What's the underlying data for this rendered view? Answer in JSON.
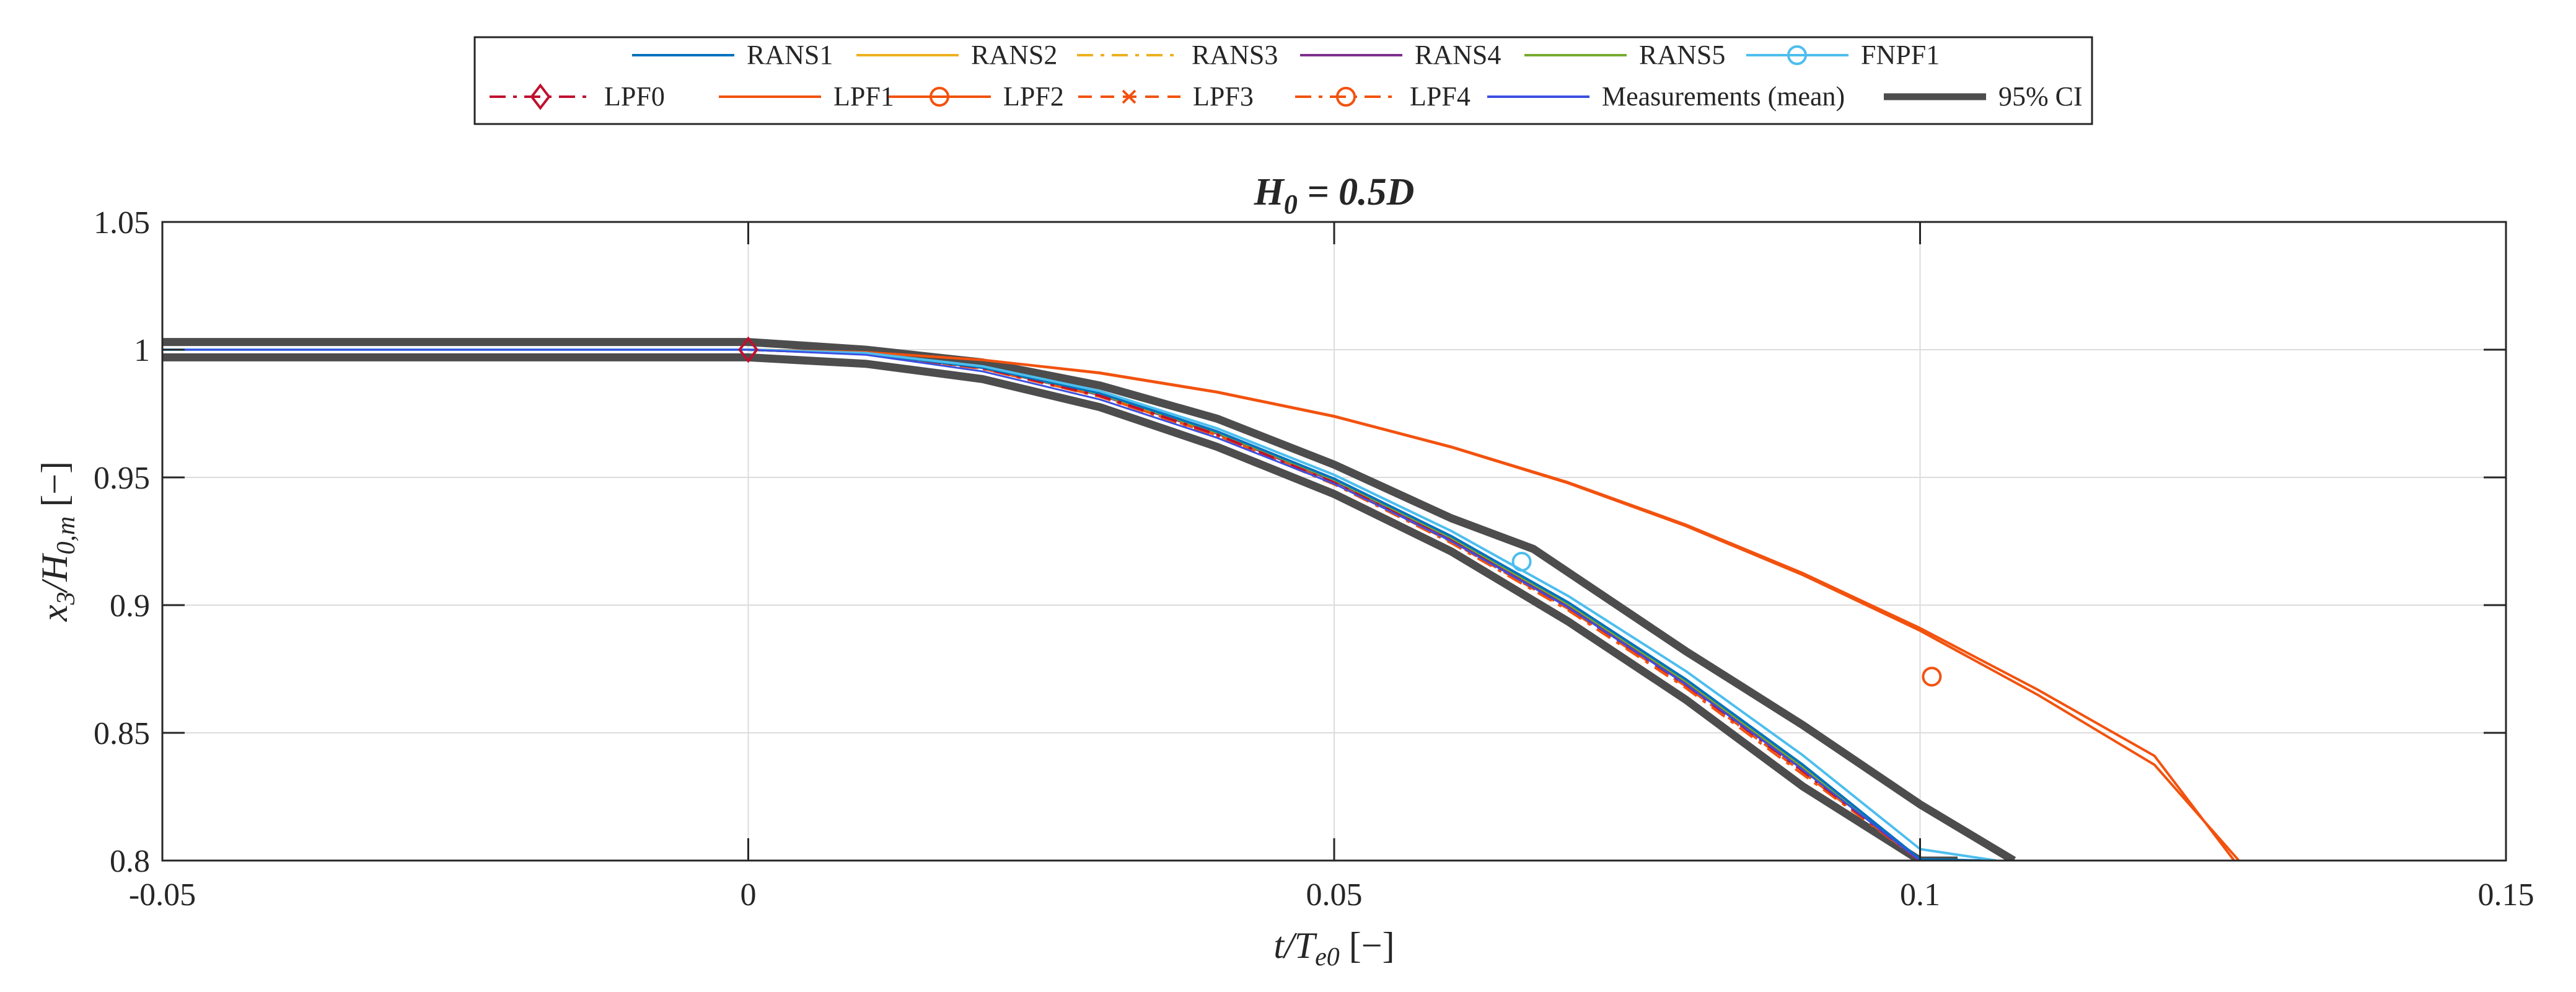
{
  "chart_data": {
    "type": "line",
    "title": "H_0 = 0.5D",
    "title_parts": {
      "lhs": "H",
      "sub": "0",
      "rhs": " = 0.5D"
    },
    "xlabel": "t/T_e0 [−]",
    "xlabel_parts": {
      "main": "t/T",
      "sub": "e0",
      "unit": " [−]"
    },
    "ylabel": "x_3/H_0,m [−]",
    "ylabel_parts": {
      "a": "x",
      "a_sub": "3",
      "b": "/H",
      "b_sub": "0,m",
      "unit": " [−]"
    },
    "xlim": [
      -0.05,
      0.15
    ],
    "ylim": [
      0.8,
      1.05
    ],
    "x_ticks": [
      -0.05,
      0,
      0.05,
      0.1,
      0.15
    ],
    "x_tick_labels": [
      "-0.05",
      "0",
      "0.05",
      "0.1",
      "0.15"
    ],
    "y_ticks": [
      0.8,
      0.85,
      0.9,
      0.95,
      1,
      1.05
    ],
    "y_tick_labels": [
      "0.8",
      "0.85",
      "0.9",
      "0.95",
      "1",
      "1.05"
    ],
    "grid": true,
    "legend_position": "top-center, outside",
    "series": [
      {
        "name": "RANS1",
        "color": "#0072BD",
        "dash": "solid",
        "marker": "none",
        "x": [
          -0.05,
          0,
          0.01,
          0.02,
          0.03,
          0.04,
          0.05,
          0.06,
          0.07,
          0.08,
          0.09,
          0.1,
          0.1055
        ],
        "y": [
          1.0,
          1.0,
          0.9985,
          0.993,
          0.983,
          0.968,
          0.9495,
          0.927,
          0.901,
          0.871,
          0.8375,
          0.8005,
          0.8
        ]
      },
      {
        "name": "RANS2",
        "color": "#EDB120",
        "dash": "solid",
        "marker": "none",
        "x": [
          -0.05,
          0,
          0.01,
          0.02,
          0.03,
          0.04,
          0.05,
          0.06,
          0.07,
          0.08,
          0.09,
          0.1,
          0.105
        ],
        "y": [
          1.0,
          1.0,
          0.9985,
          0.993,
          0.9825,
          0.9675,
          0.949,
          0.9265,
          0.9005,
          0.8705,
          0.837,
          0.8,
          0.8
        ]
      },
      {
        "name": "RANS3",
        "color": "#EDB120",
        "dash": "dashdot",
        "marker": "none",
        "x": [
          -0.05,
          0,
          0.01,
          0.02,
          0.03,
          0.04,
          0.05,
          0.06,
          0.07,
          0.08,
          0.09,
          0.1,
          0.1045
        ],
        "y": [
          1.0,
          1.0,
          0.9985,
          0.9928,
          0.9822,
          0.967,
          0.9482,
          0.9255,
          0.8993,
          0.8692,
          0.8355,
          0.8,
          0.8
        ]
      },
      {
        "name": "RANS4",
        "color": "#7E2F8E",
        "dash": "solid",
        "marker": "none",
        "x": [
          -0.05,
          0,
          0.01,
          0.02,
          0.03,
          0.04,
          0.05,
          0.06,
          0.07,
          0.08,
          0.09,
          0.1,
          0.1048
        ],
        "y": [
          1.0,
          1.0,
          0.9985,
          0.9929,
          0.9823,
          0.9672,
          0.9485,
          0.9258,
          0.8997,
          0.8696,
          0.836,
          0.8,
          0.8
        ]
      },
      {
        "name": "RANS5",
        "color": "#77AC30",
        "dash": "solid",
        "marker": "none",
        "x": [
          -0.05,
          0,
          0.01,
          0.02,
          0.03,
          0.04,
          0.05,
          0.06,
          0.07,
          0.08,
          0.09,
          0.1,
          0.1052
        ],
        "y": [
          1.0,
          1.0,
          0.9985,
          0.993,
          0.9826,
          0.9676,
          0.949,
          0.9264,
          0.9003,
          0.8703,
          0.8367,
          0.8,
          0.8
        ]
      },
      {
        "name": "FNPF1",
        "color": "#4DBEEE",
        "dash": "solid",
        "marker": "circle",
        "marker_x": [
          0.066
        ],
        "marker_y": [
          0.917
        ],
        "x": [
          -0.05,
          0,
          0.01,
          0.02,
          0.03,
          0.04,
          0.05,
          0.06,
          0.07,
          0.08,
          0.09,
          0.1,
          0.1065
        ],
        "y": [
          1.0,
          1.0,
          0.9987,
          0.9935,
          0.9838,
          0.9692,
          0.951,
          0.929,
          0.9035,
          0.8742,
          0.8412,
          0.8045,
          0.8
        ]
      },
      {
        "name": "LPF0",
        "color": "#C0102E",
        "dash": "dashdot",
        "marker": "diamond",
        "marker_x": [
          0.0
        ],
        "marker_y": [
          1.0
        ],
        "x": [
          -0.05,
          0,
          0.01,
          0.02,
          0.03,
          0.04,
          0.05,
          0.06,
          0.07,
          0.08,
          0.09,
          0.1,
          0.1042
        ],
        "y": [
          1.0,
          1.0,
          0.9985,
          0.9928,
          0.982,
          0.9668,
          0.948,
          0.9252,
          0.899,
          0.8688,
          0.835,
          0.8,
          0.8
        ]
      },
      {
        "name": "LPF1",
        "color": "#F2520E",
        "dash": "solid",
        "marker": "none",
        "x": [
          -0.05,
          0,
          0.01,
          0.02,
          0.03,
          0.04,
          0.05,
          0.06,
          0.07,
          0.08,
          0.09,
          0.1,
          0.11,
          0.12,
          0.1268
        ],
        "y": [
          1.0,
          1.0,
          0.999,
          0.996,
          0.991,
          0.9835,
          0.974,
          0.962,
          0.948,
          0.9315,
          0.9125,
          0.891,
          0.867,
          0.841,
          0.8
        ]
      },
      {
        "name": "LPF2",
        "color": "#F2520E",
        "dash": "solid",
        "marker": "circle",
        "marker_x": [
          0.101
        ],
        "marker_y": [
          0.872
        ],
        "x": [
          -0.05,
          0,
          0.01,
          0.02,
          0.03,
          0.04,
          0.05,
          0.06,
          0.07,
          0.08,
          0.09,
          0.1,
          0.11,
          0.12,
          0.1272
        ],
        "y": [
          1.0,
          1.0,
          0.999,
          0.996,
          0.9908,
          0.9833,
          0.9738,
          0.9618,
          0.9477,
          0.931,
          0.9118,
          0.89,
          0.865,
          0.8375,
          0.8
        ]
      },
      {
        "name": "LPF3",
        "color": "#F2520E",
        "dash": "dashed",
        "marker": "x",
        "marker_x": [],
        "marker_y": [],
        "x": [
          -0.05,
          0,
          0.01,
          0.02,
          0.03,
          0.04,
          0.05,
          0.06,
          0.07,
          0.08,
          0.09,
          0.1,
          0.104
        ],
        "y": [
          1.0,
          1.0,
          0.9984,
          0.9926,
          0.9818,
          0.9665,
          0.9477,
          0.9248,
          0.8985,
          0.8683,
          0.8345,
          0.8,
          0.8
        ]
      },
      {
        "name": "LPF4",
        "color": "#F2520E",
        "dash": "dashdot",
        "marker": "circle",
        "marker_x": [],
        "marker_y": [],
        "x": [
          -0.05,
          0,
          0.01,
          0.02,
          0.03,
          0.04,
          0.05,
          0.06,
          0.07,
          0.08,
          0.09,
          0.1,
          0.1035
        ],
        "y": [
          1.0,
          1.0,
          0.9984,
          0.9925,
          0.9816,
          0.9662,
          0.9473,
          0.9243,
          0.8979,
          0.8676,
          0.8337,
          0.8,
          0.8
        ]
      },
      {
        "name": "Measurements (mean)",
        "color": "#3B4FE0",
        "dash": "solid",
        "marker": "none",
        "x": [
          -0.05,
          0,
          0.01,
          0.02,
          0.03,
          0.04,
          0.05,
          0.06,
          0.07,
          0.08,
          0.09,
          0.1,
          0.1055
        ],
        "y": [
          1.0,
          1.0,
          0.998,
          0.9915,
          0.9805,
          0.9655,
          0.9475,
          0.925,
          0.899,
          0.869,
          0.8355,
          0.8,
          0.8
        ]
      },
      {
        "name": "95% CI",
        "color": "#4D4D4D",
        "dash": "solid",
        "marker": "none",
        "upper": {
          "x": [
            -0.05,
            0,
            0.01,
            0.02,
            0.03,
            0.04,
            0.05,
            0.06,
            0.067,
            0.08,
            0.09,
            0.1,
            0.108
          ],
          "y": [
            1.003,
            1.003,
            1.0,
            0.995,
            0.986,
            0.973,
            0.955,
            0.934,
            0.922,
            0.882,
            0.853,
            0.822,
            0.8
          ]
        },
        "lower": {
          "x": [
            -0.05,
            0,
            0.01,
            0.02,
            0.03,
            0.04,
            0.05,
            0.06,
            0.07,
            0.08,
            0.09,
            0.1,
            0.1032
          ],
          "y": [
            0.997,
            0.997,
            0.9945,
            0.9885,
            0.9775,
            0.962,
            0.9435,
            0.921,
            0.8935,
            0.863,
            0.829,
            0.8,
            0.8
          ]
        }
      }
    ],
    "legend_rows": [
      [
        "RANS1",
        "RANS2",
        "RANS3",
        "RANS4",
        "RANS5",
        "FNPF1"
      ],
      [
        "LPF0",
        "LPF1",
        "LPF2",
        "LPF3",
        "LPF4",
        "Measurements (mean)",
        "95% CI"
      ]
    ]
  }
}
